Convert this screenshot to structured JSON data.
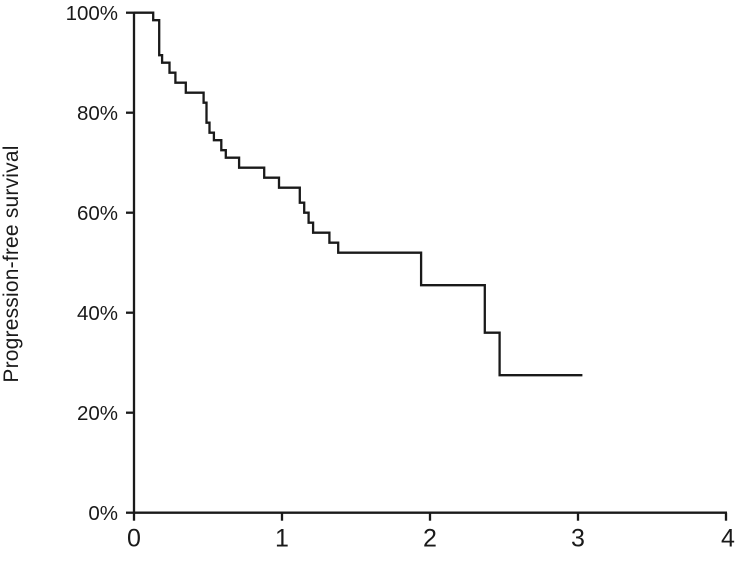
{
  "figure": {
    "background_color": "#ffffff",
    "line_color": "#1a1a1a"
  },
  "chart_data": {
    "type": "line",
    "subtype": "kaplan-meier-step-curve",
    "title": "",
    "xlabel": "",
    "ylabel": "Progression-free survival",
    "xlim": [
      0,
      4
    ],
    "ylim": [
      0,
      100
    ],
    "grid": false,
    "legend": "none",
    "x_ticks": [
      {
        "value": 0,
        "label": "0"
      },
      {
        "value": 1,
        "label": "1"
      },
      {
        "value": 2,
        "label": "2"
      },
      {
        "value": 3,
        "label": "3"
      },
      {
        "value": 4,
        "label": "4"
      }
    ],
    "y_ticks": [
      {
        "value": 0,
        "label": "0%"
      },
      {
        "value": 20,
        "label": "20%"
      },
      {
        "value": 40,
        "label": "40%"
      },
      {
        "value": 60,
        "label": "60%"
      },
      {
        "value": 80,
        "label": "80%"
      },
      {
        "value": 100,
        "label": "100%"
      }
    ],
    "series": [
      {
        "name": "Progression-free survival",
        "step_mode": "post",
        "points_time_vs_percent": [
          [
            0,
            100
          ],
          [
            0.13,
            98.5
          ],
          [
            0.17,
            91.5
          ],
          [
            0.19,
            90
          ],
          [
            0.24,
            88
          ],
          [
            0.28,
            86
          ],
          [
            0.35,
            84
          ],
          [
            0.47,
            82
          ],
          [
            0.49,
            78
          ],
          [
            0.51,
            76
          ],
          [
            0.54,
            74.5
          ],
          [
            0.59,
            72.5
          ],
          [
            0.62,
            71
          ],
          [
            0.71,
            69
          ],
          [
            0.88,
            67
          ],
          [
            0.98,
            65
          ],
          [
            1.12,
            62
          ],
          [
            1.15,
            60
          ],
          [
            1.18,
            58
          ],
          [
            1.21,
            56
          ],
          [
            1.32,
            54
          ],
          [
            1.38,
            52
          ],
          [
            1.94,
            45.5
          ],
          [
            2.37,
            36
          ],
          [
            2.47,
            27.5
          ],
          [
            3.03,
            27.5
          ]
        ]
      }
    ]
  }
}
